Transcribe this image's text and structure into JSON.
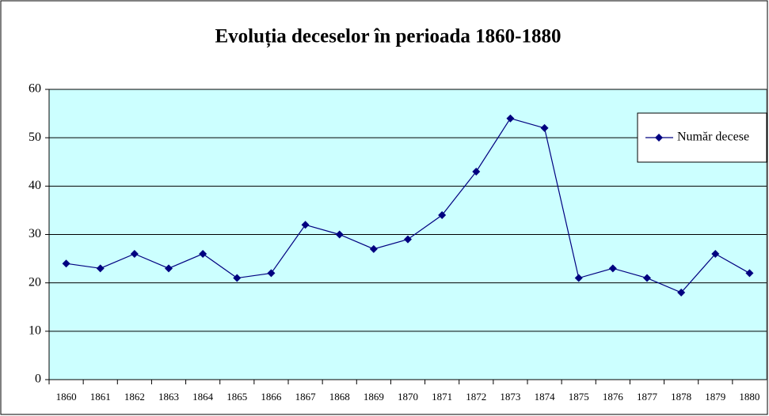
{
  "chart_data": {
    "type": "line",
    "title": "Evoluția deceselor în perioada 1860-1880",
    "categories": [
      "1860",
      "1861",
      "1862",
      "1863",
      "1864",
      "1865",
      "1866",
      "1867",
      "1868",
      "1869",
      "1870",
      "1871",
      "1872",
      "1873",
      "1874",
      "1875",
      "1876",
      "1877",
      "1878",
      "1879",
      "1880"
    ],
    "series": [
      {
        "name": "Număr decese",
        "color": "#000080",
        "values": [
          24,
          23,
          26,
          23,
          26,
          21,
          22,
          32,
          30,
          27,
          29,
          34,
          43,
          54,
          52,
          21,
          23,
          21,
          18,
          26,
          22
        ]
      }
    ],
    "ylim": [
      0,
      60
    ],
    "yticks": [
      0,
      10,
      20,
      30,
      40,
      50,
      60
    ],
    "grid": true,
    "legend": "upper-right",
    "plot_background": "#ccffff"
  }
}
